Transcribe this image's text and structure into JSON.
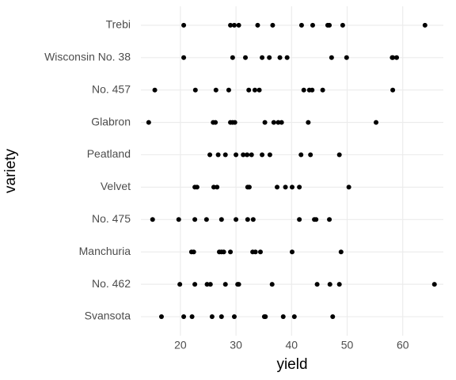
{
  "chart_data": {
    "type": "scatter",
    "x_label": "yield",
    "y_label": "variety",
    "categories": [
      "Svansota",
      "No. 462",
      "Manchuria",
      "No. 475",
      "Velvet",
      "Peatland",
      "Glabron",
      "No. 457",
      "Wisconsin No. 38",
      "Trebi"
    ],
    "values": [
      [
        16.6,
        20.6,
        22.1,
        25.7,
        27.4,
        29.7,
        35.1,
        35.3,
        38.5,
        40.5,
        47.4
      ],
      [
        19.9,
        22.6,
        24.8,
        25.4,
        28.1,
        30.3,
        30.5,
        36.5,
        44.6,
        46.9,
        48.6,
        65.7
      ],
      [
        22.0,
        22.4,
        27.0,
        27.4,
        27.8,
        29.0,
        33.0,
        33.5,
        34.4,
        40.1,
        48.9
      ],
      [
        15.0,
        19.7,
        22.6,
        24.7,
        27.4,
        30.0,
        32.1,
        33.1,
        41.4,
        44.1,
        44.4,
        46.8
      ],
      [
        22.6,
        23.0,
        26.0,
        26.6,
        32.1,
        32.4,
        37.4,
        38.9,
        40.1,
        41.4,
        50.3
      ],
      [
        25.3,
        26.8,
        28.1,
        30.0,
        31.3,
        32.0,
        32.8,
        34.7,
        36.1,
        41.7,
        43.4,
        48.6
      ],
      [
        14.3,
        25.9,
        26.3,
        29.0,
        29.4,
        29.8,
        35.2,
        36.8,
        37.6,
        38.2,
        43.0,
        55.2
      ],
      [
        15.4,
        22.7,
        26.4,
        28.7,
        32.3,
        33.4,
        34.2,
        42.2,
        43.2,
        43.7,
        45.6,
        58.2
      ],
      [
        20.6,
        29.4,
        31.7,
        34.7,
        36.0,
        37.9,
        39.2,
        47.2,
        49.9,
        58.1,
        58.2,
        58.9
      ],
      [
        20.6,
        29.0,
        29.7,
        30.5,
        33.9,
        36.6,
        41.8,
        43.8,
        46.5,
        46.8,
        49.2,
        64.0
      ]
    ],
    "color": "#000000",
    "xlim": [
      12.9,
      67.3
    ],
    "xticks": [
      20,
      30,
      40,
      50,
      60
    ],
    "grid": true
  }
}
